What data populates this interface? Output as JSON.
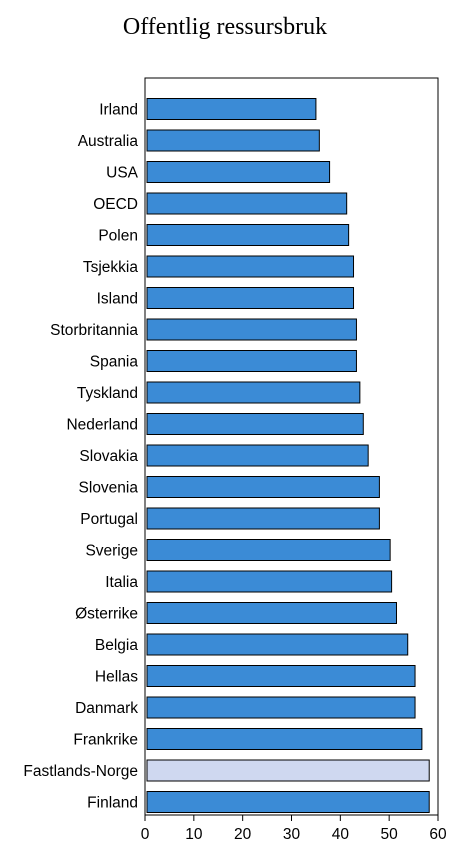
{
  "chart_data": {
    "type": "bar",
    "orientation": "horizontal",
    "title": "Offentlig ressursbruk",
    "xlabel": "",
    "ylabel": "",
    "xlim": [
      0,
      60
    ],
    "xticks": [
      0,
      10,
      20,
      30,
      40,
      50,
      60
    ],
    "grid": false,
    "categories": [
      "Irland",
      "Australia",
      "USA",
      "OECD",
      "Polen",
      "Tsjekkia",
      "Island",
      "Storbritannia",
      "Spania",
      "Tyskland",
      "Nederland",
      "Slovakia",
      "Slovenia",
      "Portugal",
      "Sverige",
      "Italia",
      "Østerrike",
      "Belgia",
      "Hellas",
      "Danmark",
      "Frankrike",
      "Fastlands-Norge",
      "Finland"
    ],
    "values": [
      35,
      35.7,
      37.8,
      41.3,
      41.7,
      42.7,
      42.7,
      43.3,
      43.3,
      44,
      44.7,
      45.7,
      48,
      48,
      50.2,
      50.5,
      51.5,
      53.8,
      55.3,
      55.3,
      56.7,
      58.2,
      58.2
    ],
    "colors": {
      "bar": "#3b8bd6",
      "highlight": "#cfd8f0",
      "edge": "#000000"
    },
    "highlight": "Fastlands-Norge"
  }
}
